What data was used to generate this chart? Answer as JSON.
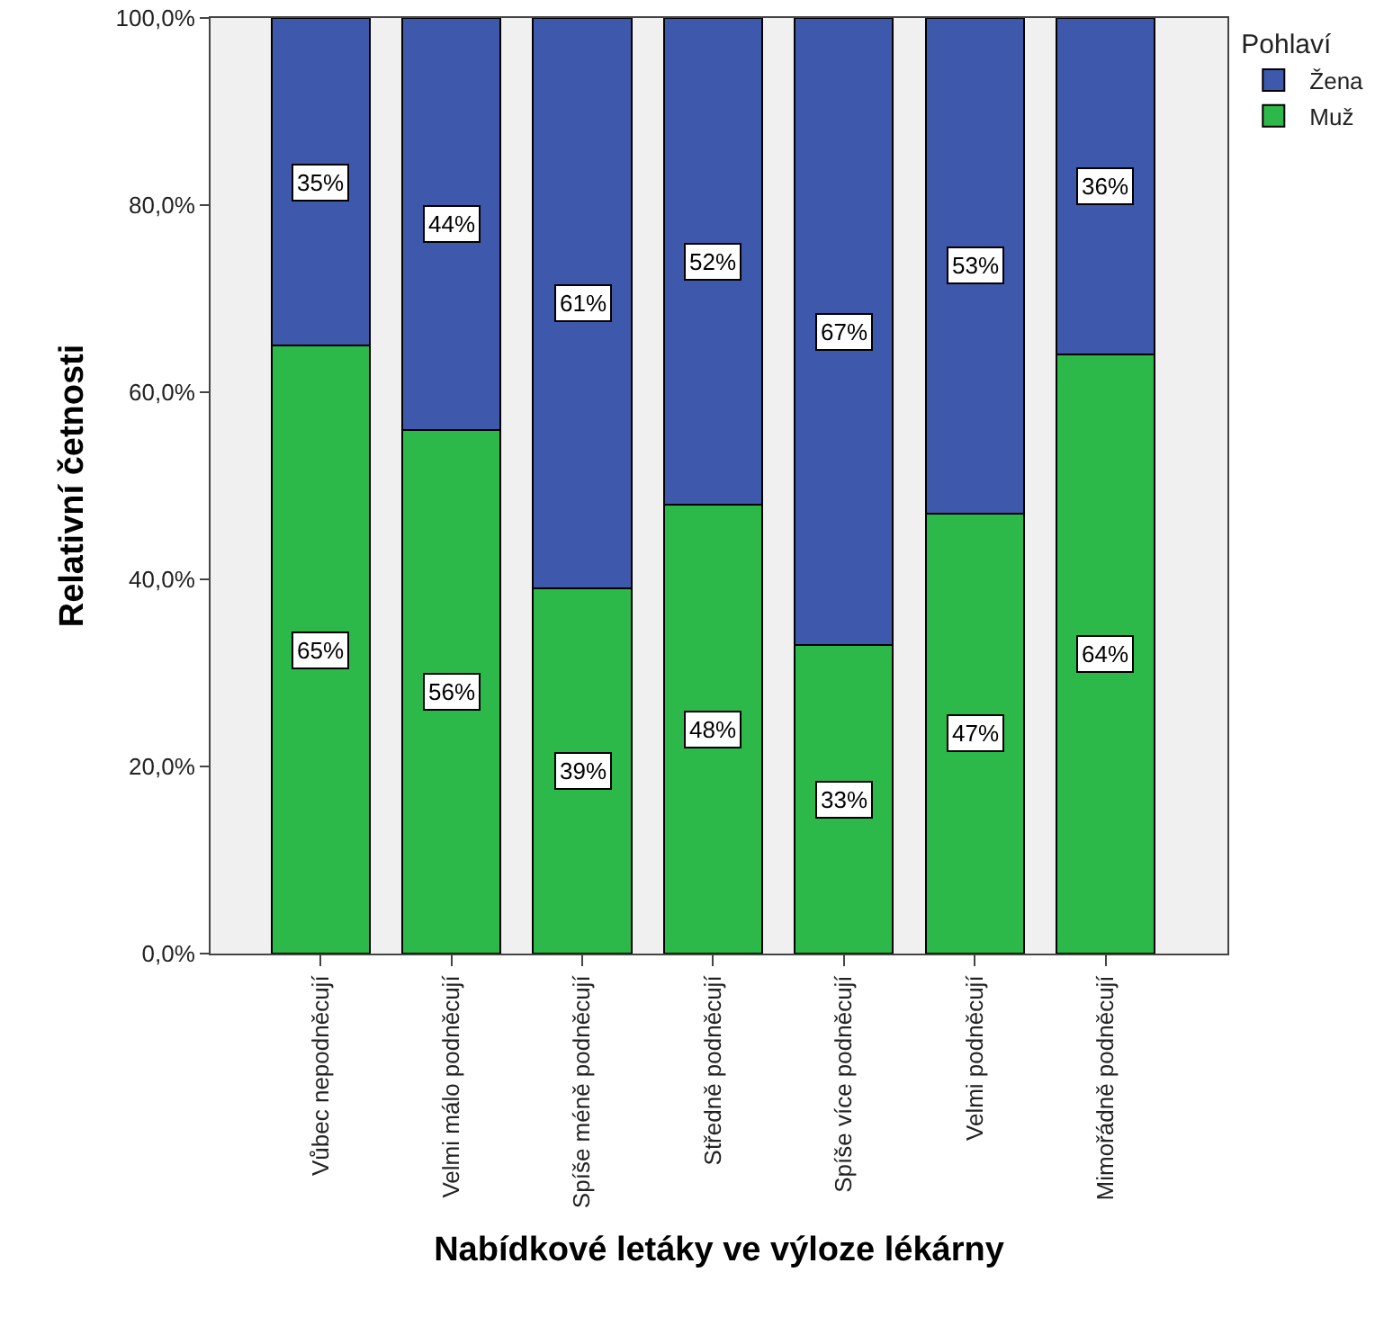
{
  "chart_data": {
    "type": "bar",
    "stacked": true,
    "xlabel": "Nabídkové letáky ve výloze lékárny",
    "ylabel": "Relativní četnosti",
    "legend_title": "Pohlaví",
    "legend": "top right",
    "categories": [
      "Vůbec nepodněcují",
      "Velmi málo podněcují",
      "Spíše méně podněcují",
      "Středně podněcují",
      "Spíše více podněcují",
      "Velmi podněcují",
      "Mimořádně podněcují"
    ],
    "series": [
      {
        "name": "Muž",
        "color": "#2db84a",
        "values": [
          65,
          56,
          39,
          48,
          33,
          47,
          64
        ],
        "value_labels": [
          "65%",
          "56%",
          "39%",
          "48%",
          "33%",
          "47%",
          "64%"
        ]
      },
      {
        "name": "Žena",
        "color": "#3e58ac",
        "values": [
          35,
          44,
          61,
          52,
          67,
          53,
          36
        ],
        "value_labels": [
          "35%",
          "44%",
          "61%",
          "52%",
          "67%",
          "53%",
          "36%"
        ]
      }
    ],
    "ylim": [
      0,
      100
    ],
    "yticks": [
      {
        "value": 0,
        "label": "0,0%"
      },
      {
        "value": 20,
        "label": "20,0%"
      },
      {
        "value": 40,
        "label": "40,0%"
      },
      {
        "value": 60,
        "label": "60,0%"
      },
      {
        "value": 80,
        "label": "80,0%"
      },
      {
        "value": 100,
        "label": "100,0%"
      }
    ],
    "grid": false
  }
}
